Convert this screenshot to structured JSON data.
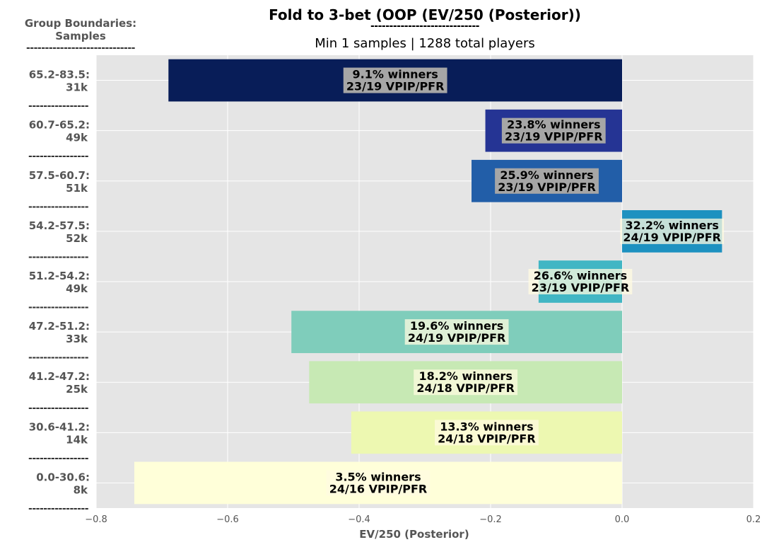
{
  "title": "Fold to 3-bet (OOP (EV/250 (Posterior))",
  "title_rule": "-----------------------------",
  "subtitle": "Min 1 samples | 1288 total players",
  "group_header": {
    "line1": "Group Boundaries:",
    "line2": "Samples",
    "rule": "-----------------------------"
  },
  "row_separator": "----------------",
  "chart_data": {
    "type": "bar",
    "orientation": "horizontal",
    "title": "Fold to 3-bet (OOP (EV/250 (Posterior))",
    "subtitle": "Min 1 samples | 1288 total players",
    "xlabel": "EV/250 (Posterior)",
    "ylabel": "Group Boundaries: Samples",
    "xlim": [
      -0.8,
      0.2
    ],
    "xticks": [
      -0.8,
      -0.6,
      -0.4,
      -0.2,
      0.0,
      0.2
    ],
    "xtick_labels": [
      "−0.8",
      "−0.6",
      "−0.4",
      "−0.2",
      "0.0",
      "0.2"
    ],
    "grid": true,
    "bars": [
      {
        "range": "65.2-83.5:",
        "samples": "31k",
        "value": -0.69,
        "winners": "9.1% winners",
        "vpip_pfr": "23/19 VPIP/PFR",
        "color": "#081d58"
      },
      {
        "range": "60.7-65.2:",
        "samples": "49k",
        "value": -0.208,
        "winners": "23.8% winners",
        "vpip_pfr": "23/19 VPIP/PFR",
        "color": "#253494"
      },
      {
        "range": "57.5-60.7:",
        "samples": "51k",
        "value": -0.229,
        "winners": "25.9% winners",
        "vpip_pfr": "23/19 VPIP/PFR",
        "color": "#225ea8"
      },
      {
        "range": "54.2-57.5:",
        "samples": "52k",
        "value": 0.152,
        "winners": "32.2% winners",
        "vpip_pfr": "24/19 VPIP/PFR",
        "color": "#1d91c0"
      },
      {
        "range": "51.2-54.2:",
        "samples": "49k",
        "value": -0.127,
        "winners": "26.6% winners",
        "vpip_pfr": "23/19 VPIP/PFR",
        "color": "#41b6c4"
      },
      {
        "range": "47.2-51.2:",
        "samples": "33k",
        "value": -0.503,
        "winners": "19.6% winners",
        "vpip_pfr": "24/19 VPIP/PFR",
        "color": "#7fcdbb"
      },
      {
        "range": "41.2-47.2:",
        "samples": "25k",
        "value": -0.476,
        "winners": "18.2% winners",
        "vpip_pfr": "24/18 VPIP/PFR",
        "color": "#c7e9b4"
      },
      {
        "range": "30.6-41.2:",
        "samples": "14k",
        "value": -0.412,
        "winners": "13.3% winners",
        "vpip_pfr": "24/18 VPIP/PFR",
        "color": "#edf8b1"
      },
      {
        "range": "0.0-30.6:",
        "samples": "8k",
        "value": -0.742,
        "winners": "3.5% winners",
        "vpip_pfr": "24/16 VPIP/PFR",
        "color": "#ffffd9"
      }
    ]
  },
  "colors": {
    "plot_background": "#e5e5e5",
    "grid": "#ffffff",
    "label_gray": "#555555",
    "annotation_box_dark": "#a6a6a6",
    "annotation_box_light": "#fffbe0"
  }
}
